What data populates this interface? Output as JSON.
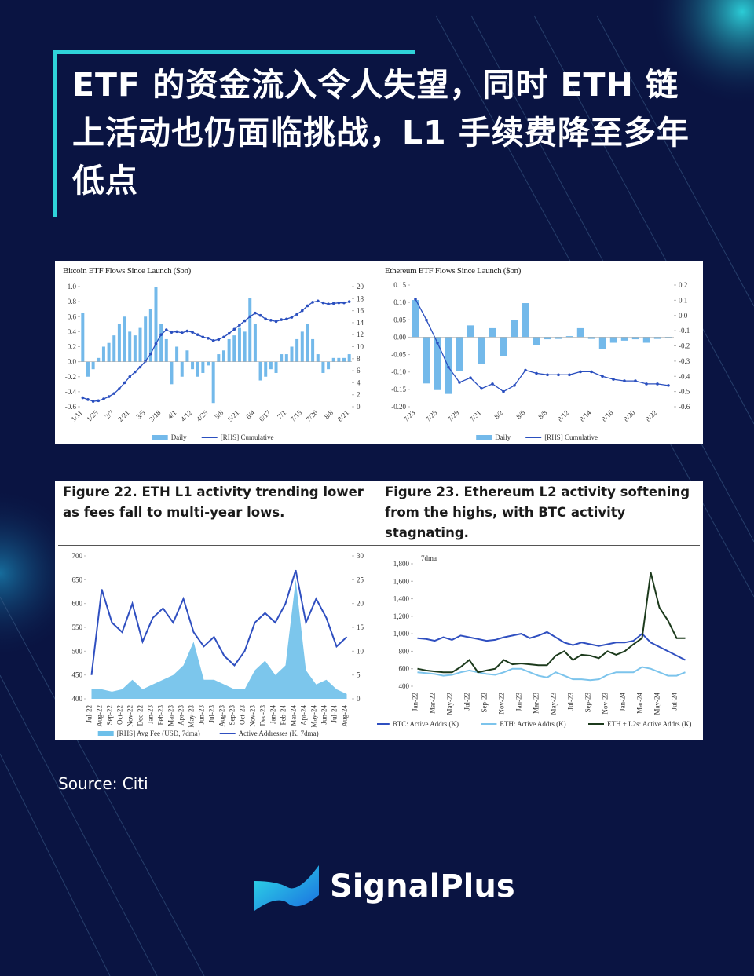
{
  "header": {
    "title": "ETF 的资金流入令人失望，同时 ETH 链上活动也仍面临挑战，L1 手续费降至多年低点"
  },
  "chart_data": [
    {
      "type": "combo",
      "title": "Bitcoin ETF Flows Since Launch ($bn)",
      "categories": [
        "1/11",
        null,
        null,
        "1/25",
        null,
        null,
        "2/7",
        null,
        null,
        "2/21",
        null,
        null,
        "3/5",
        null,
        null,
        "3/18",
        null,
        null,
        "4/1",
        null,
        null,
        "4/12",
        null,
        null,
        "4/25",
        null,
        null,
        "5/8",
        null,
        null,
        "5/21",
        null,
        null,
        "6/4",
        null,
        null,
        "6/17",
        null,
        null,
        "7/1",
        null,
        null,
        "7/15",
        null,
        null,
        "7/26",
        null,
        null,
        "8/8",
        null,
        null,
        "8/21"
      ],
      "series": [
        {
          "name": "Daily",
          "kind": "bar",
          "color": "#73b9ea",
          "values": [
            0.65,
            -0.2,
            -0.1,
            0.05,
            0.2,
            0.25,
            0.35,
            0.5,
            0.6,
            0.4,
            0.35,
            0.45,
            0.6,
            0.7,
            1.0,
            0.5,
            0.3,
            -0.3,
            0.2,
            -0.2,
            0.15,
            -0.1,
            -0.2,
            -0.15,
            -0.05,
            -0.55,
            0.1,
            0.15,
            0.3,
            0.35,
            0.45,
            0.4,
            0.85,
            0.5,
            -0.25,
            -0.2,
            -0.1,
            -0.15,
            0.1,
            0.1,
            0.2,
            0.3,
            0.4,
            0.5,
            0.3,
            0.1,
            -0.15,
            -0.1,
            0.05,
            0.05,
            0.05,
            0.1
          ]
        },
        {
          "name": "[RHS] Cumulative",
          "kind": "line",
          "marker": true,
          "axis": "y2",
          "color": "#2a4fbf",
          "values": [
            1.5,
            1.2,
            0.9,
            1.0,
            1.3,
            1.7,
            2.2,
            3.0,
            4.0,
            5.0,
            5.8,
            6.6,
            7.6,
            8.8,
            10.5,
            12.0,
            12.8,
            12.4,
            12.5,
            12.3,
            12.6,
            12.4,
            12.0,
            11.6,
            11.4,
            11.0,
            11.2,
            11.6,
            12.2,
            12.9,
            13.6,
            14.3,
            15.0,
            15.6,
            15.2,
            14.6,
            14.4,
            14.2,
            14.5,
            14.6,
            14.9,
            15.4,
            16.0,
            16.8,
            17.4,
            17.6,
            17.3,
            17.1,
            17.2,
            17.3,
            17.3,
            17.5
          ]
        }
      ],
      "ylim": [
        -0.6,
        1.0
      ],
      "yticks": [
        -0.6,
        -0.4,
        -0.2,
        {
          "value": 0,
          "label": "0.0"
        },
        0.2,
        0.4,
        0.6,
        0.8,
        {
          "value": 1,
          "label": "1.0"
        }
      ],
      "y2lim": [
        0,
        20
      ],
      "y2ticks": [
        0,
        2,
        4,
        6,
        8,
        10,
        12,
        14,
        16,
        18,
        20
      ],
      "grid": false
    },
    {
      "type": "combo",
      "title": "Ethereum ETF Flows Since Launch ($bn)",
      "categories": [
        "7/23",
        null,
        "7/25",
        null,
        "7/29",
        null,
        "7/31",
        null,
        "8/2",
        null,
        "8/6",
        null,
        "8/8",
        null,
        "8/12",
        null,
        "8/14",
        null,
        "8/16",
        null,
        "8/20",
        null,
        "8/22",
        null
      ],
      "series": [
        {
          "name": "Daily",
          "kind": "bar",
          "color": "#73b9ea",
          "values": [
            0.107,
            -0.133,
            -0.152,
            -0.163,
            -0.098,
            0.034,
            -0.077,
            0.026,
            -0.055,
            0.049,
            0.098,
            -0.022,
            -0.006,
            -0.005,
            0.003,
            0.026,
            -0.005,
            -0.035,
            -0.016,
            -0.01,
            -0.006,
            -0.016,
            -0.005,
            -0.003
          ]
        },
        {
          "name": "[RHS] Cumulative",
          "kind": "line",
          "marker": true,
          "axis": "y2",
          "color": "#2a4fbf",
          "values": [
            0.107,
            -0.03,
            -0.18,
            -0.34,
            -0.44,
            -0.41,
            -0.48,
            -0.45,
            -0.5,
            -0.46,
            -0.36,
            -0.38,
            -0.39,
            -0.39,
            -0.39,
            -0.37,
            -0.37,
            -0.4,
            -0.42,
            -0.43,
            -0.43,
            -0.45,
            -0.45,
            -0.46
          ]
        }
      ],
      "ylim": [
        -0.2,
        0.15
      ],
      "yticks": [
        {
          "value": -0.2,
          "label": "-0.20"
        },
        -0.15,
        {
          "value": -0.1,
          "label": "-0.10"
        },
        -0.05,
        {
          "value": 0,
          "label": "0.00"
        },
        0.05,
        {
          "value": 0.1,
          "label": "0.10"
        },
        0.15
      ],
      "y2lim": [
        -0.6,
        0.2
      ],
      "y2ticks": [
        -0.6,
        -0.5,
        -0.4,
        -0.3,
        -0.2,
        -0.1,
        {
          "value": 0,
          "label": "0.0"
        },
        0.1,
        0.2
      ],
      "grid": false
    },
    {
      "type": "combo",
      "title": "Figure 22. ETH L1 activity trending lower as fees fall to multi-year lows.",
      "categories": [
        "Jul-22",
        "Aug-22",
        "Sep-22",
        "Oct-22",
        "Nov-22",
        "Dec-22",
        "Jan-23",
        "Feb-23",
        "Mar-23",
        "Apr-23",
        "May-23",
        "Jun-23",
        "Jul-23",
        "Aug-23",
        "Sep-23",
        "Oct-23",
        "Nov-23",
        "Dec-23",
        "Jan-24",
        "Feb-24",
        "Mar-24",
        "Apr-24",
        "May-24",
        "Jun-24",
        "Jul-24",
        "Aug-24"
      ],
      "series": [
        {
          "name": "[RHS] Avg Fee (USD, 7dma)",
          "kind": "area",
          "axis": "y2",
          "color": "#6ec0ea",
          "values": [
            2,
            2,
            1.5,
            2,
            4,
            2,
            3,
            4,
            5,
            7,
            12,
            4,
            4,
            3,
            2,
            2,
            6,
            8,
            5,
            7,
            25,
            6,
            3,
            4,
            2,
            1
          ]
        },
        {
          "name": "Active Addresses (K, 7dma)",
          "kind": "line",
          "color": "#2f4fc0",
          "values": [
            450,
            630,
            560,
            540,
            600,
            520,
            570,
            590,
            560,
            610,
            540,
            510,
            530,
            490,
            470,
            500,
            560,
            580,
            560,
            600,
            670,
            560,
            610,
            570,
            510,
            530
          ]
        }
      ],
      "ylim": [
        400,
        700
      ],
      "yticks": [
        400,
        450,
        500,
        550,
        600,
        650,
        700
      ],
      "y2lim": [
        0,
        30
      ],
      "y2ticks": [
        0,
        5,
        10,
        15,
        20,
        25,
        30
      ],
      "grid": false
    },
    {
      "type": "line",
      "title": "Figure 23. Ethereum L2 activity softening from the highs, with BTC activity stagnating.",
      "annotation": "7dma",
      "categories": [
        "Jan-22",
        null,
        "Mar-22",
        null,
        "May-22",
        null,
        "Jul-22",
        null,
        "Sep-22",
        null,
        "Nov-22",
        null,
        "Jan-23",
        null,
        "Mar-23",
        null,
        "May-23",
        null,
        "Jul-23",
        null,
        "Sep-23",
        null,
        "Nov-23",
        null,
        "Jan-24",
        null,
        "Mar-24",
        null,
        "May-24",
        null,
        "Jul-24",
        null
      ],
      "series": [
        {
          "name": "BTC: Active Addrs (K)",
          "kind": "line",
          "color": "#2f4fc0",
          "values": [
            950,
            940,
            920,
            960,
            930,
            980,
            960,
            940,
            920,
            930,
            960,
            980,
            1000,
            950,
            980,
            1020,
            960,
            900,
            870,
            900,
            880,
            860,
            880,
            900,
            900,
            920,
            1000,
            900,
            850,
            800,
            750,
            700
          ]
        },
        {
          "name": "ETH: Active Addrs (K)",
          "kind": "line",
          "color": "#7cc4ec",
          "values": [
            560,
            550,
            540,
            520,
            530,
            560,
            580,
            560,
            540,
            530,
            560,
            600,
            600,
            560,
            520,
            500,
            560,
            520,
            480,
            480,
            470,
            480,
            530,
            560,
            560,
            560,
            620,
            600,
            560,
            520,
            520,
            560
          ]
        },
        {
          "name": "ETH + L2s: Active Addrs (K)",
          "kind": "line",
          "color": "#1c3a1c",
          "values": [
            600,
            580,
            570,
            560,
            560,
            620,
            700,
            560,
            580,
            600,
            700,
            650,
            660,
            650,
            640,
            640,
            750,
            800,
            700,
            760,
            750,
            720,
            800,
            760,
            800,
            880,
            950,
            1700,
            1300,
            1150,
            950,
            950
          ]
        }
      ],
      "ylim": [
        400,
        1800
      ],
      "yticks": [
        {
          "value": 400,
          "label": "400"
        },
        600,
        800,
        {
          "value": 1000,
          "label": "1,000"
        },
        {
          "value": 1200,
          "label": "1,200"
        },
        {
          "value": 1400,
          "label": "1,400"
        },
        {
          "value": 1600,
          "label": "1,600"
        },
        {
          "value": 1800,
          "label": "1,800"
        }
      ],
      "grid": false
    }
  ],
  "source": "Source: Citi",
  "brand": "SignalPlus"
}
